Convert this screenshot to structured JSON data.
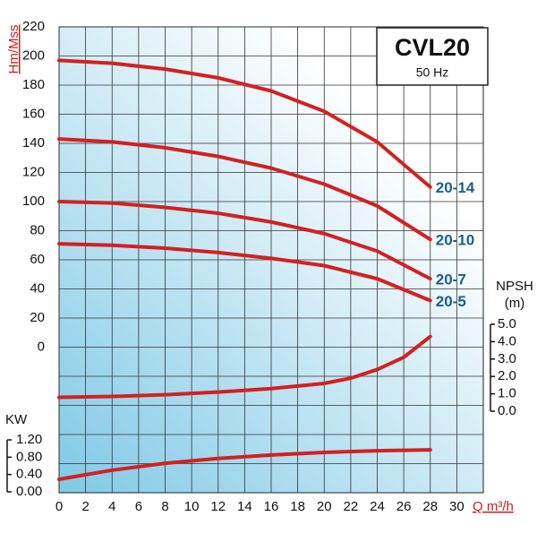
{
  "chart_data": {
    "type": "line",
    "title": "CVL20",
    "subtitle": "50 Hz",
    "xlabel": "Q m³/h",
    "ylabel": "Hm/Mss",
    "y2label": "NPSH",
    "y2unit": "(m)",
    "y3label": "KW",
    "xlim": [
      0,
      32
    ],
    "xticks": [
      0,
      2,
      4,
      6,
      8,
      10,
      12,
      14,
      16,
      18,
      20,
      22,
      24,
      26,
      28,
      30
    ],
    "ylim": [
      -100,
      220
    ],
    "yticks": [
      0,
      20,
      40,
      60,
      80,
      100,
      120,
      140,
      160,
      180,
      200,
      220
    ],
    "y2lim": [
      0,
      5
    ],
    "y2ticks": [
      {
        "value": 0,
        "label": "0.0"
      },
      {
        "value": 1,
        "label": "1.0"
      },
      {
        "value": 2,
        "label": "2.0"
      },
      {
        "value": 3,
        "label": "3.0"
      },
      {
        "value": 4,
        "label": "4.0"
      },
      {
        "value": 5,
        "label": "5.0"
      }
    ],
    "y3lim": [
      0,
      1.2
    ],
    "y3ticks": [
      {
        "value": 0,
        "label": "0.00"
      },
      {
        "value": 0.4,
        "label": "0.40"
      },
      {
        "value": 0.8,
        "label": "0.80"
      },
      {
        "value": 1.2,
        "label": "1.20"
      }
    ],
    "grid": true,
    "series": [
      {
        "name": "20-14",
        "color": "#d42020",
        "x": [
          0,
          4,
          8,
          12,
          16,
          20,
          24,
          28
        ],
        "values": [
          197,
          195,
          191,
          185,
          176,
          162,
          141,
          110
        ]
      },
      {
        "name": "20-10",
        "color": "#d42020",
        "x": [
          0,
          4,
          8,
          12,
          16,
          20,
          24,
          28
        ],
        "values": [
          143,
          141,
          137,
          131,
          123,
          112,
          97,
          74
        ]
      },
      {
        "name": "20-7",
        "color": "#d42020",
        "x": [
          0,
          4,
          8,
          12,
          16,
          20,
          24,
          28
        ],
        "values": [
          100,
          99,
          96,
          92,
          86,
          78,
          66,
          47
        ]
      },
      {
        "name": "20-5",
        "color": "#d42020",
        "x": [
          0,
          4,
          8,
          12,
          16,
          20,
          24,
          28
        ],
        "values": [
          71,
          70,
          68,
          65,
          61,
          56,
          47,
          32
        ]
      },
      {
        "color": "#d42020",
        "axis": "y2",
        "x": [
          0,
          4,
          8,
          12,
          16,
          20,
          22,
          24,
          26,
          28
        ],
        "values": [
          0.8,
          0.85,
          0.95,
          1.1,
          1.3,
          1.6,
          1.9,
          2.4,
          3.1,
          4.3
        ]
      },
      {
        "color": "#d42020",
        "axis": "y3",
        "x": [
          0,
          4,
          8,
          12,
          16,
          20,
          24,
          28
        ],
        "values": [
          0.29,
          0.5,
          0.66,
          0.77,
          0.85,
          0.91,
          0.95,
          0.97
        ]
      }
    ]
  }
}
